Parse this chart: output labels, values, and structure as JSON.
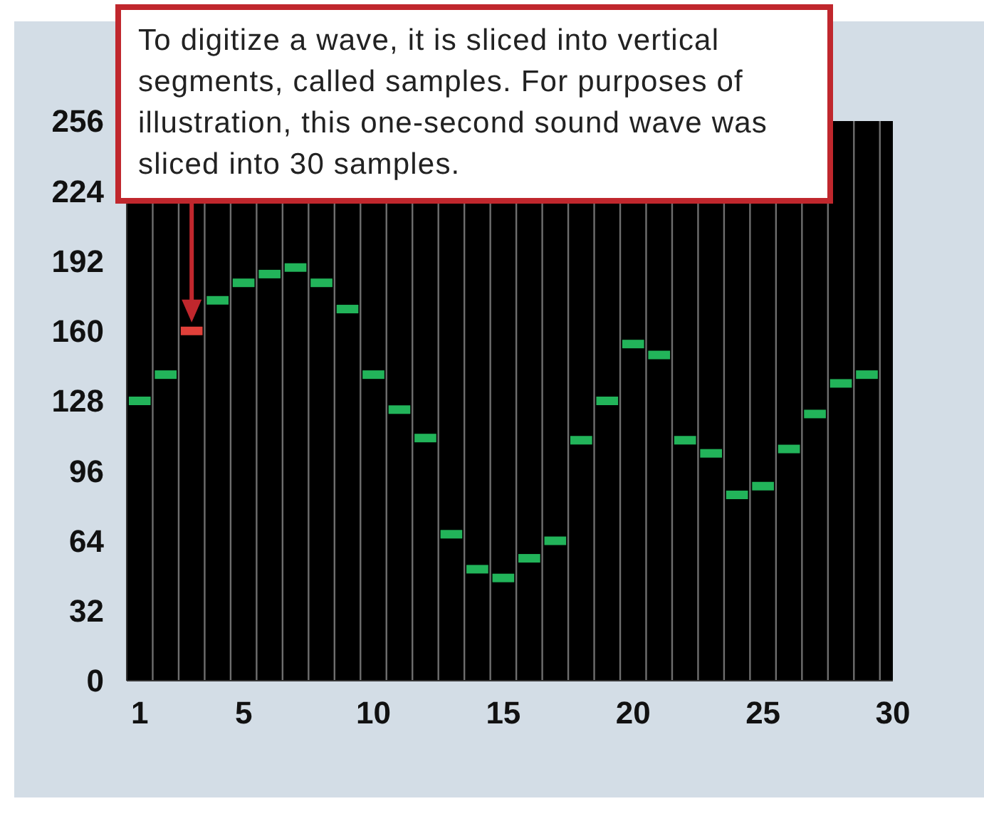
{
  "chart_data": {
    "type": "scatter",
    "x": [
      1,
      2,
      3,
      4,
      5,
      6,
      7,
      8,
      9,
      10,
      11,
      12,
      13,
      14,
      15,
      16,
      17,
      18,
      19,
      20,
      21,
      22,
      23,
      24,
      25,
      26,
      27,
      28,
      29
    ],
    "values": [
      128,
      140,
      160,
      174,
      182,
      186,
      189,
      182,
      170,
      140,
      124,
      111,
      67,
      51,
      47,
      56,
      64,
      110,
      128,
      154,
      149,
      110,
      104,
      85,
      89,
      106,
      122,
      136,
      140
    ],
    "colors": [
      "#22b45a",
      "#22b45a",
      "#e0403a",
      "#22b45a",
      "#22b45a",
      "#22b45a",
      "#22b45a",
      "#22b45a",
      "#22b45a",
      "#22b45a",
      "#22b45a",
      "#22b45a",
      "#22b45a",
      "#22b45a",
      "#22b45a",
      "#22b45a",
      "#22b45a",
      "#22b45a",
      "#22b45a",
      "#22b45a",
      "#22b45a",
      "#22b45a",
      "#22b45a",
      "#22b45a",
      "#22b45a",
      "#22b45a",
      "#22b45a",
      "#22b45a",
      "#22b45a"
    ],
    "xlim": [
      0.5,
      30
    ],
    "xticks": [
      1,
      5,
      10,
      15,
      20,
      25,
      30
    ],
    "ylim": [
      0,
      256
    ],
    "yticks": [
      0,
      32,
      64,
      96,
      128,
      160,
      192,
      224,
      256
    ],
    "annotations": [
      "To digitize a wave, it is sliced into vertical segments, called samples. For purposes of illustration, this one-second sound wave was sliced into 30 samples."
    ]
  }
}
